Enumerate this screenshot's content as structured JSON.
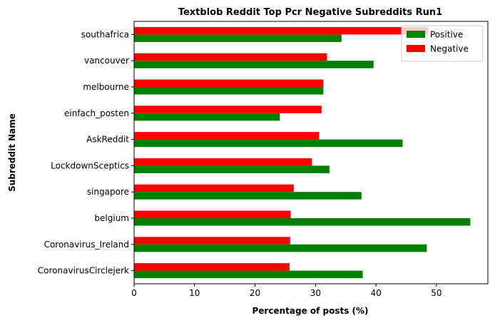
{
  "chart_data": {
    "type": "bar",
    "orientation": "horizontal",
    "title": "Textblob Reddit Top Pcr Negative Subreddits Run1",
    "xlabel": "Percentage of posts (%)",
    "ylabel": "Subreddit Name",
    "xlim": [
      0,
      58.5
    ],
    "xticks": [
      0,
      10,
      20,
      30,
      40,
      50
    ],
    "grid": false,
    "legend_position": "top-right",
    "categories": [
      "southafrica",
      "vancouver",
      "melbourne",
      "einfach_posten",
      "AskReddit",
      "LockdownSceptics",
      "singapore",
      "belgium",
      "Coronavirus_Ireland",
      "CoronavirusCirclejerk"
    ],
    "series": [
      {
        "name": "Positive",
        "color": "#008000",
        "values": [
          34.3,
          39.6,
          31.3,
          24.1,
          44.4,
          32.3,
          37.6,
          55.6,
          48.4,
          37.8
        ]
      },
      {
        "name": "Negative",
        "color": "#ff0000",
        "values": [
          48.6,
          31.9,
          31.3,
          31.0,
          30.6,
          29.4,
          26.4,
          25.9,
          25.8,
          25.7
        ]
      }
    ]
  }
}
